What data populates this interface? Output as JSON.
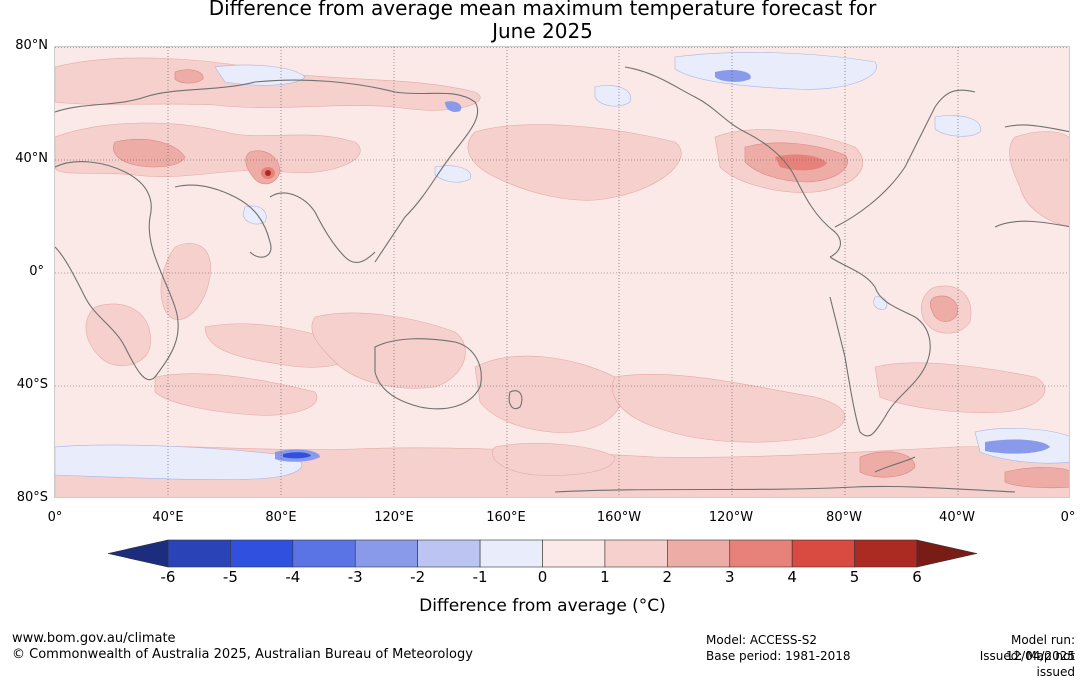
{
  "title_line1": "Difference from average mean maximum temperature forecast for",
  "title_line2": "June 2025",
  "lat_labels": [
    "80°N",
    "40°N",
    "0°",
    "40°S",
    "80°S"
  ],
  "lon_labels": [
    "0°",
    "40°E",
    "80°E",
    "120°E",
    "160°E",
    "160°W",
    "120°W",
    "80°W",
    "40°W",
    "0°"
  ],
  "colorbar": {
    "label": "Difference from average (°C)",
    "ticks": [
      "-6",
      "-5",
      "-4",
      "-3",
      "-2",
      "-1",
      "0",
      "1",
      "2",
      "3",
      "4",
      "5",
      "6"
    ],
    "colors": [
      "#1c2d7e",
      "#2a44b8",
      "#3050e0",
      "#5a74e6",
      "#8a9aea",
      "#bcc5f2",
      "#e8ecfb",
      "#fbe9e7",
      "#f5d0cd",
      "#eeaca6",
      "#e6827a",
      "#d94a40",
      "#ab2a22",
      "#7a1c16"
    ]
  },
  "footer": {
    "website": "www.bom.gov.au/climate",
    "copyright": "© Commonwealth of Australia 2025, Australian Bureau of Meteorology",
    "model": "Model: ACCESS-S2",
    "base_period": "Base period: 1981-2018",
    "model_run": "Model run: 12/04/2025",
    "issued": "Issued: Map not issued"
  }
}
